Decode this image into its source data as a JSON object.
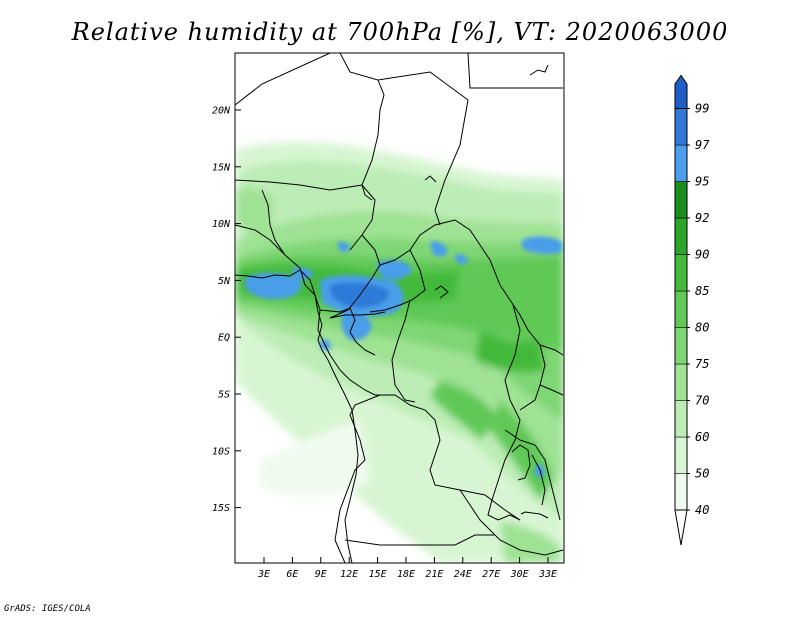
{
  "title": "Relative humidity at 700hPa [%], VT: 2020063000",
  "credit": "GrADS: IGES/COLA",
  "map": {
    "lat_ticks": [
      "20N",
      "15N",
      "10N",
      "5N",
      "EQ",
      "5S",
      "10S",
      "15S"
    ],
    "lon_ticks": [
      "3E",
      "6E",
      "9E",
      "12E",
      "15E",
      "18E",
      "21E",
      "24E",
      "27E",
      "30E",
      "33E"
    ],
    "lon_range": [
      0,
      35
    ],
    "lat_range": [
      -20,
      25
    ]
  },
  "colorbar": {
    "labels": [
      "40",
      "50",
      "60",
      "70",
      "75",
      "80",
      "85",
      "90",
      "92",
      "95",
      "97",
      "99"
    ],
    "colors": [
      "#f0fbef",
      "#d8f5d3",
      "#bdedb6",
      "#9fe294",
      "#7fd674",
      "#60c956",
      "#42b93b",
      "#2ba52a",
      "#1a8e1e",
      "#4a9eea",
      "#2f7ad8",
      "#1f5ec4"
    ]
  }
}
